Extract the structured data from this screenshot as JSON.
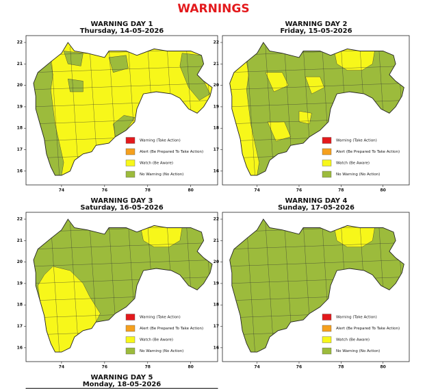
{
  "header": {
    "title": "WARNINGS"
  },
  "panels": [
    {
      "title": "WARNING DAY 1",
      "date": "Thursday, 14-05-2026",
      "xticks": [
        74,
        76,
        78,
        80
      ],
      "yticks": [
        22,
        21,
        20,
        19,
        18,
        17,
        16
      ],
      "legend": [
        "Warning (Take Action)",
        "Alert (Be Prepared To Take Action)",
        "Watch (Be Aware)",
        "No Warning (No Action)"
      ]
    },
    {
      "title": "WARNING DAY 2",
      "date": "Friday, 15-05-2026",
      "xticks": [
        74,
        76,
        78,
        80
      ],
      "yticks": [
        22,
        21,
        20,
        19,
        18,
        17,
        16
      ],
      "legend": [
        "Warning (Take Action)",
        "Alert (Be Prepared To Take Action)",
        "Watch (Be Aware)",
        "No Warning (No Action)"
      ]
    },
    {
      "title": "WARNING DAY 3",
      "date": "Saturday, 16-05-2026",
      "xticks": [
        74,
        76,
        78,
        80
      ],
      "yticks": [
        22,
        21,
        20,
        19,
        18,
        17,
        16
      ],
      "legend": [
        "Warning (Take Action)",
        "Alert (Be Prepared To Take Action)",
        "Watch (Be Aware)",
        "No Warning (No Action)"
      ]
    },
    {
      "title": "WARNING DAY 4",
      "date": "Sunday, 17-05-2026",
      "xticks": [
        74,
        76,
        78,
        80
      ],
      "yticks": [
        22,
        21,
        20,
        19,
        18,
        17,
        16
      ],
      "legend": [
        "Warning (Take Action)",
        "Alert (Be Prepared To Take Action)",
        "Watch (Be Aware)",
        "No Warning (No Action)"
      ]
    },
    {
      "title": "WARNING DAY 5",
      "date": "Monday, 18-05-2026"
    }
  ]
}
